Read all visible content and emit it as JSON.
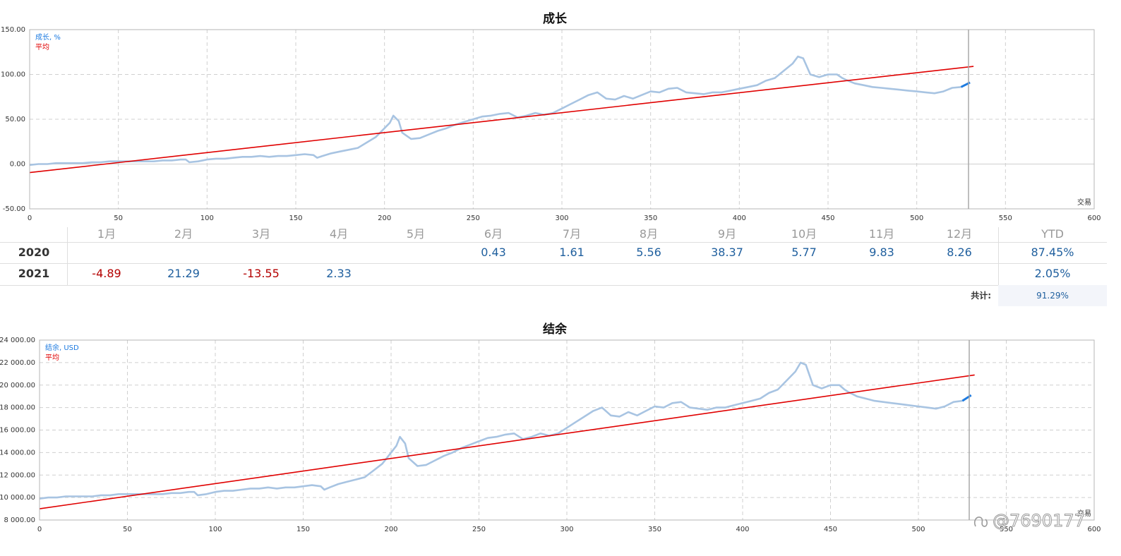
{
  "chart_data": [
    {
      "type": "line",
      "title": "成长",
      "xlabel": "交易",
      "ylabel": "",
      "xlim": [
        0,
        600
      ],
      "ylim": [
        -50,
        150
      ],
      "x_ticks": [
        "0",
        "50",
        "100",
        "150",
        "200",
        "250",
        "300",
        "350",
        "400",
        "450",
        "500",
        "550",
        "600"
      ],
      "y_ticks": [
        "150.00",
        "100.00",
        "50.00",
        "0.00",
        "-50.00"
      ],
      "legend": [
        "成长, %",
        "平均"
      ],
      "legend_position": "top-left",
      "grid": true,
      "colors": {
        "series": "#a8c4e2",
        "series_last": "#1e7be0",
        "average": "#e00000"
      },
      "series": [
        {
          "name": "成长, %",
          "x": [
            0,
            5,
            10,
            15,
            20,
            25,
            30,
            35,
            40,
            45,
            50,
            55,
            60,
            65,
            70,
            75,
            80,
            85,
            88,
            90,
            95,
            100,
            105,
            110,
            115,
            120,
            125,
            130,
            135,
            140,
            145,
            150,
            155,
            160,
            162,
            165,
            170,
            175,
            180,
            185,
            190,
            195,
            200,
            203,
            205,
            208,
            210,
            215,
            220,
            225,
            230,
            235,
            240,
            245,
            250,
            255,
            260,
            265,
            270,
            275,
            280,
            285,
            290,
            295,
            300,
            305,
            310,
            315,
            320,
            325,
            330,
            335,
            340,
            345,
            350,
            355,
            360,
            365,
            370,
            375,
            380,
            385,
            390,
            395,
            400,
            405,
            410,
            415,
            420,
            425,
            430,
            433,
            436,
            440,
            445,
            450,
            455,
            458,
            460,
            465,
            470,
            475,
            480,
            485,
            490,
            495,
            500,
            505,
            510,
            515,
            520,
            525,
            530
          ],
          "y": [
            -1,
            0,
            0,
            1,
            1,
            1,
            1,
            2,
            2,
            3,
            3,
            3,
            3,
            3,
            3,
            4,
            4,
            5,
            5,
            2,
            3,
            5,
            6,
            6,
            7,
            8,
            8,
            9,
            8,
            9,
            9,
            10,
            11,
            10,
            7,
            9,
            12,
            14,
            16,
            18,
            24,
            30,
            40,
            46,
            54,
            48,
            35,
            28,
            29,
            33,
            37,
            40,
            44,
            47,
            50,
            53,
            54,
            56,
            57,
            52,
            54,
            57,
            55,
            57,
            62,
            67,
            72,
            77,
            80,
            73,
            72,
            76,
            73,
            77,
            81,
            80,
            84,
            85,
            80,
            79,
            78,
            80,
            80,
            82,
            84,
            86,
            88,
            93,
            96,
            104,
            112,
            120,
            118,
            100,
            97,
            100,
            100,
            96,
            94,
            90,
            88,
            86,
            85,
            84,
            83,
            82,
            81,
            80,
            79,
            81,
            85,
            86,
            91
          ]
        },
        {
          "name": "平均",
          "x": [
            0,
            532
          ],
          "y": [
            -9.5,
            109
          ]
        }
      ]
    },
    {
      "type": "line",
      "title": "结余",
      "xlabel": "交易",
      "ylabel": "",
      "xlim": [
        0,
        600
      ],
      "ylim": [
        8000,
        24000
      ],
      "x_ticks": [
        "0",
        "50",
        "100",
        "150",
        "200",
        "250",
        "300",
        "350",
        "400",
        "450",
        "500",
        "550",
        "600"
      ],
      "y_ticks": [
        "24 000.00",
        "22 000.00",
        "20 000.00",
        "18 000.00",
        "16 000.00",
        "14 000.00",
        "12 000.00",
        "10 000.00",
        "8 000.00"
      ],
      "legend": [
        "结余, USD",
        "平均"
      ],
      "legend_position": "top-left",
      "grid": true,
      "colors": {
        "series": "#a8c4e2",
        "series_last": "#1e7be0",
        "average": "#e00000"
      },
      "series": [
        {
          "name": "结余, USD",
          "x": [
            0,
            5,
            10,
            15,
            20,
            25,
            30,
            35,
            40,
            45,
            50,
            55,
            60,
            65,
            70,
            75,
            80,
            85,
            88,
            90,
            95,
            100,
            105,
            110,
            115,
            120,
            125,
            130,
            135,
            140,
            145,
            150,
            155,
            160,
            162,
            165,
            170,
            175,
            180,
            185,
            190,
            195,
            200,
            203,
            205,
            208,
            210,
            215,
            220,
            225,
            230,
            235,
            240,
            245,
            250,
            255,
            260,
            265,
            270,
            275,
            280,
            285,
            290,
            295,
            300,
            305,
            310,
            315,
            320,
            325,
            330,
            335,
            340,
            345,
            350,
            355,
            360,
            365,
            370,
            375,
            380,
            385,
            390,
            395,
            400,
            405,
            410,
            415,
            420,
            425,
            430,
            433,
            436,
            440,
            445,
            450,
            455,
            458,
            460,
            465,
            470,
            475,
            480,
            485,
            490,
            495,
            500,
            505,
            510,
            515,
            520,
            525,
            530
          ],
          "y": [
            9900,
            10000,
            10000,
            10100,
            10100,
            10100,
            10100,
            10200,
            10200,
            10300,
            10300,
            10300,
            10300,
            10300,
            10300,
            10400,
            10400,
            10500,
            10500,
            10200,
            10300,
            10500,
            10600,
            10600,
            10700,
            10800,
            10800,
            10900,
            10800,
            10900,
            10900,
            11000,
            11100,
            11000,
            10700,
            10900,
            11200,
            11400,
            11600,
            11800,
            12400,
            13000,
            14000,
            14600,
            15400,
            14800,
            13500,
            12800,
            12900,
            13300,
            13700,
            14000,
            14400,
            14700,
            15000,
            15300,
            15400,
            15600,
            15700,
            15200,
            15400,
            15700,
            15500,
            15700,
            16200,
            16700,
            17200,
            17700,
            18000,
            17300,
            17200,
            17600,
            17300,
            17700,
            18100,
            18000,
            18400,
            18500,
            18000,
            17900,
            17800,
            18000,
            18000,
            18200,
            18400,
            18600,
            18800,
            19300,
            19600,
            20400,
            21200,
            22000,
            21800,
            20000,
            19700,
            20000,
            20000,
            19600,
            19400,
            19000,
            18800,
            18600,
            18500,
            18400,
            18300,
            18200,
            18100,
            18000,
            17900,
            18100,
            18500,
            18600,
            19100
          ]
        },
        {
          "name": "平均",
          "x": [
            0,
            532
          ],
          "y": [
            9000,
            20900
          ]
        }
      ]
    }
  ],
  "monthly_table": {
    "months": [
      "1月",
      "2月",
      "3月",
      "4月",
      "5月",
      "6月",
      "7月",
      "8月",
      "9月",
      "10月",
      "11月",
      "12月"
    ],
    "ytd_header": "YTD",
    "rows": [
      {
        "year": "2020",
        "values": [
          "",
          "",
          "",
          "",
          "",
          "0.43",
          "1.61",
          "5.56",
          "38.37",
          "5.77",
          "9.83",
          "8.26"
        ],
        "ytd": "87.45%"
      },
      {
        "year": "2021",
        "values": [
          "-4.89",
          "21.29",
          "-13.55",
          "2.33",
          "",
          "",
          "",
          "",
          "",
          "",
          "",
          ""
        ],
        "ytd": "2.05%"
      }
    ],
    "total_label": "共计:",
    "total_value": "91.29%"
  },
  "watermark": {
    "text": "@7690177"
  }
}
